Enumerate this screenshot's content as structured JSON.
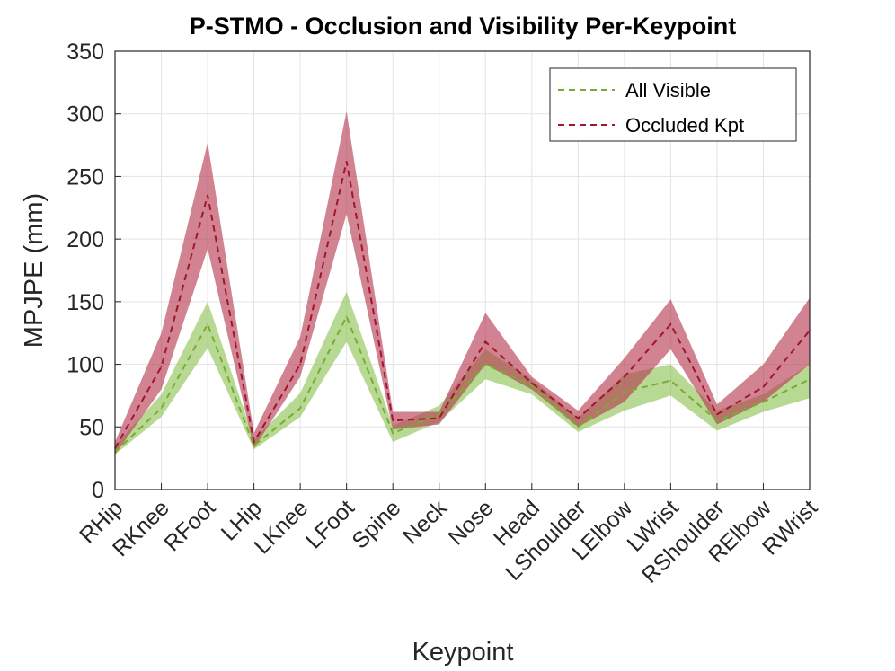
{
  "chart_data": {
    "type": "line",
    "title": "P-STMO - Occlusion and Visibility Per-Keypoint",
    "xlabel": "Keypoint",
    "ylabel": "MPJPE (mm)",
    "ylim": [
      0,
      350
    ],
    "yticks": [
      0,
      50,
      100,
      150,
      200,
      250,
      300,
      350
    ],
    "grid": true,
    "legend_position": "top-right",
    "categories": [
      "RHip",
      "RKnee",
      "RFoot",
      "LHip",
      "LKnee",
      "LFoot",
      "Spine",
      "Neck",
      "Nose",
      "Head",
      "LShoulder",
      "LElbow",
      "LWrist",
      "RShoulder",
      "RElbow",
      "RWrist"
    ],
    "series": [
      {
        "name": "All Visible",
        "color": "#77ac30",
        "band_color": "#8cc152",
        "values": [
          30,
          65,
          132,
          35,
          65,
          138,
          45,
          60,
          100,
          83,
          50,
          78,
          87,
          55,
          70,
          88
        ],
        "lower": [
          28,
          58,
          113,
          32,
          58,
          118,
          38,
          54,
          88,
          76,
          46,
          63,
          75,
          47,
          62,
          73
        ],
        "upper": [
          35,
          76,
          150,
          40,
          77,
          158,
          51,
          67,
          112,
          88,
          57,
          92,
          100,
          63,
          76,
          100
        ]
      },
      {
        "name": "Occluded Kpt",
        "color": "#a2142f",
        "band_color": "#b5374f",
        "values": [
          33,
          98,
          235,
          38,
          100,
          262,
          55,
          57,
          118,
          85,
          57,
          90,
          132,
          60,
          82,
          127
        ],
        "lower": [
          28,
          80,
          192,
          33,
          90,
          220,
          48,
          52,
          100,
          80,
          50,
          70,
          112,
          52,
          70,
          100
        ],
        "upper": [
          38,
          125,
          277,
          45,
          122,
          302,
          62,
          62,
          141,
          90,
          63,
          105,
          152,
          68,
          100,
          153
        ]
      }
    ]
  }
}
